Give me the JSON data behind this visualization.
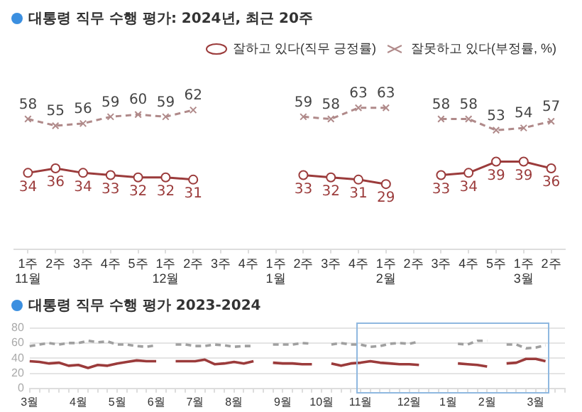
{
  "chart_data": [
    {
      "type": "line",
      "title": "대통령 직무 수행 평가: 2024년, 최근 20주",
      "categories": [
        "1주\n11월",
        "2주",
        "3주",
        "4주",
        "5주",
        "1주\n12월",
        "2주",
        "3주",
        "4주",
        "1주\n1월",
        "2주",
        "3주",
        "4주",
        "1주\n2월",
        "2주",
        "3주",
        "4주",
        "5주",
        "1주\n3월",
        "2주"
      ],
      "series": [
        {
          "name": "잘하고 있다(직무 긍정률)",
          "color": "#9b3b3b",
          "marker": "circle",
          "line_style": "solid",
          "values": [
            34,
            36,
            34,
            33,
            32,
            32,
            31,
            null,
            null,
            null,
            33,
            32,
            31,
            29,
            null,
            33,
            34,
            39,
            39,
            36
          ]
        },
        {
          "name": "잘못하고 있다(부정률, %)",
          "color": "#b08a8a",
          "marker": "cross",
          "line_style": "dashed",
          "values": [
            58,
            55,
            56,
            59,
            60,
            59,
            62,
            null,
            null,
            null,
            59,
            58,
            63,
            63,
            null,
            58,
            58,
            53,
            54,
            57
          ]
        }
      ],
      "tick_labels": "x",
      "data_labels": true,
      "legend": "top right",
      "grid": false
    },
    {
      "type": "line",
      "title": "대통령 직무 수행 평가 2023-2024",
      "categories": [
        "3월",
        null,
        null,
        null,
        null,
        "4월",
        null,
        null,
        null,
        "5월",
        null,
        null,
        null,
        "6월",
        null,
        null,
        null,
        "7월",
        null,
        null,
        null,
        "8월",
        null,
        null,
        null,
        null,
        "9월",
        null,
        null,
        null,
        "10월",
        null,
        null,
        null,
        "11월",
        null,
        null,
        null,
        null,
        "12월",
        null,
        null,
        null,
        "1월",
        null,
        null,
        null,
        "2월",
        null,
        null,
        null,
        null,
        "3월",
        null,
        null,
        null
      ],
      "series": [
        {
          "color": "#9b3b3b",
          "line_style": "solid",
          "values": [
            36,
            35,
            33,
            34,
            30,
            31,
            27,
            31,
            30,
            33,
            35,
            37,
            36,
            36,
            null,
            36,
            36,
            36,
            38,
            32,
            33,
            35,
            33,
            36,
            null,
            34,
            33,
            33,
            32,
            32,
            null,
            33,
            30,
            33,
            34,
            36,
            34,
            33,
            32,
            32,
            31,
            null,
            null,
            null,
            33,
            32,
            31,
            29,
            null,
            33,
            34,
            39,
            39,
            36,
            null,
            null
          ]
        },
        {
          "color": "#a0a0a0",
          "line_style": "dashed",
          "values": [
            56,
            58,
            60,
            58,
            60,
            60,
            63,
            61,
            62,
            58,
            58,
            56,
            55,
            57,
            null,
            58,
            58,
            56,
            56,
            58,
            57,
            55,
            56,
            56,
            null,
            58,
            58,
            58,
            60,
            59,
            null,
            58,
            60,
            58,
            58,
            55,
            56,
            59,
            60,
            59,
            62,
            null,
            null,
            null,
            59,
            58,
            63,
            63,
            null,
            58,
            58,
            53,
            54,
            57,
            null,
            null
          ]
        }
      ],
      "ylim": [
        0,
        80
      ],
      "yticks": [
        0,
        20,
        40,
        60,
        80
      ],
      "grid": "y",
      "marker": "none",
      "legend": false
    }
  ]
}
